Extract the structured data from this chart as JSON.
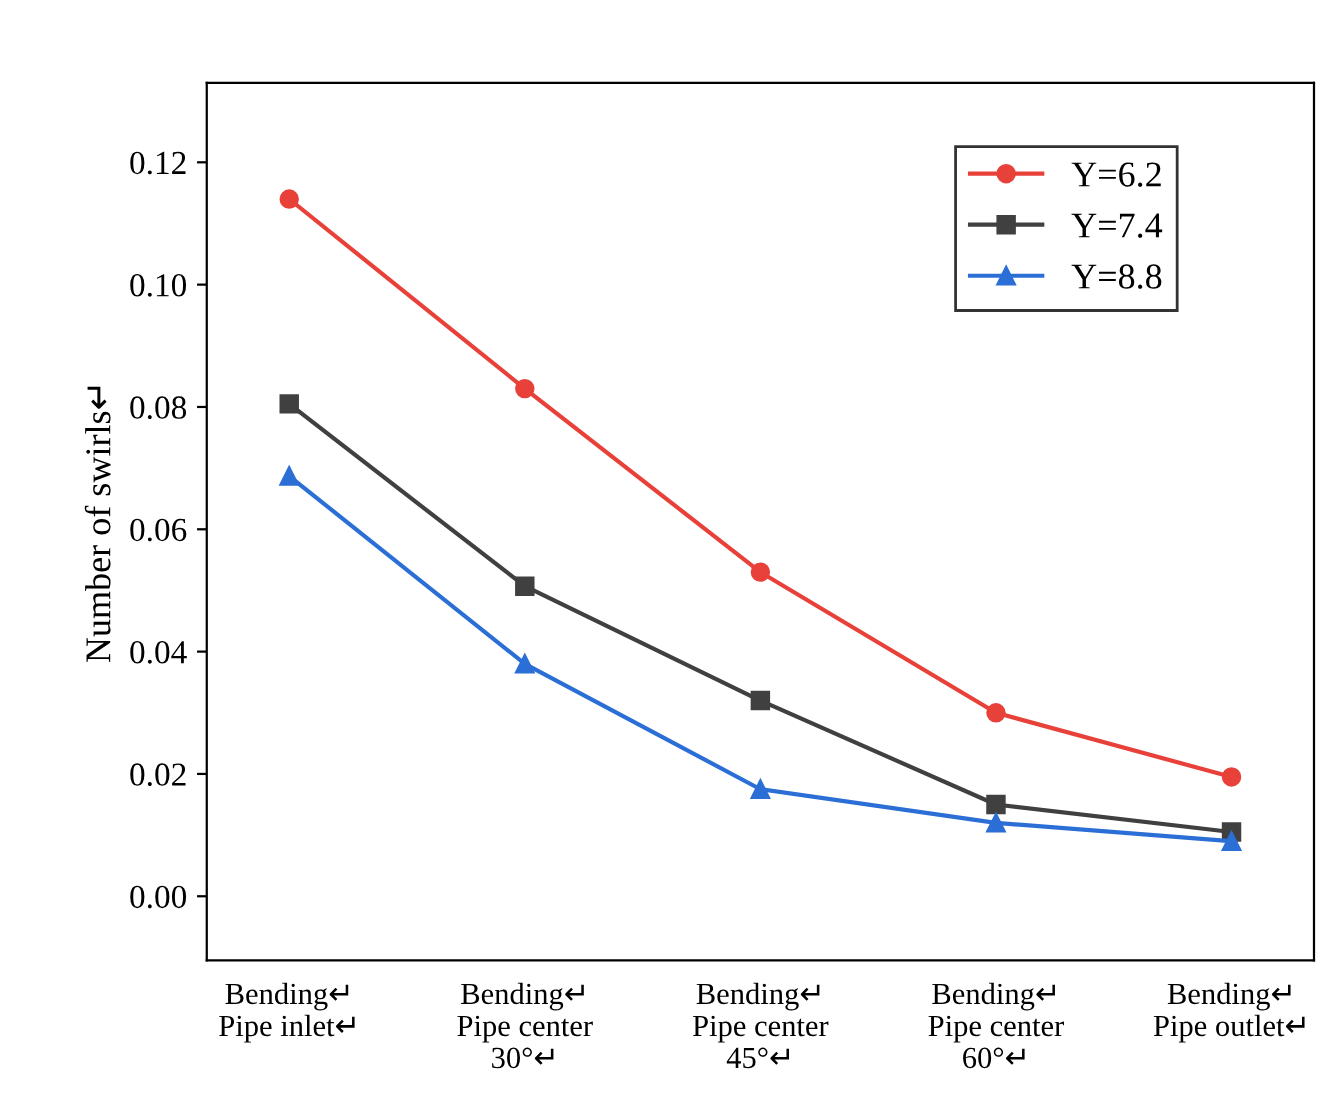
{
  "chart_data": {
    "type": "line",
    "ylabel": "Number of swirls↵",
    "categories": [
      "Bending↵\nPipe inlet↵",
      "Bending↵\nPipe center\n30°↵",
      "Bending↵\nPipe center\n45°↵",
      "Bending↵\nPipe center\n60°↵",
      "Bending↵\nPipe outlet↵"
    ],
    "series": [
      {
        "name": "Y=6.2",
        "color": "#e8413a",
        "marker": "circle",
        "values": [
          0.114,
          0.083,
          0.053,
          0.03,
          0.0195
        ]
      },
      {
        "name": "Y=7.4",
        "color": "#404040",
        "marker": "square",
        "values": [
          0.0805,
          0.0507,
          0.032,
          0.015,
          0.0105
        ]
      },
      {
        "name": "Y=8.8",
        "color": "#2b6fd6",
        "marker": "triangle",
        "values": [
          0.0687,
          0.038,
          0.0175,
          0.012,
          0.009
        ]
      }
    ],
    "ylim": [
      -0.0105,
      0.133
    ],
    "yticks": [
      {
        "value": 0,
        "label": "0.00"
      },
      {
        "value": 0.02,
        "label": "0.02"
      },
      {
        "value": 0.04,
        "label": "0.04"
      },
      {
        "value": 0.06,
        "label": "0.06"
      },
      {
        "value": 0.08,
        "label": "0.08"
      },
      {
        "value": 0.1,
        "label": "0.10"
      },
      {
        "value": 0.12,
        "label": "0.12"
      }
    ],
    "grid": false,
    "legend": "top right",
    "line_style": "solid"
  }
}
